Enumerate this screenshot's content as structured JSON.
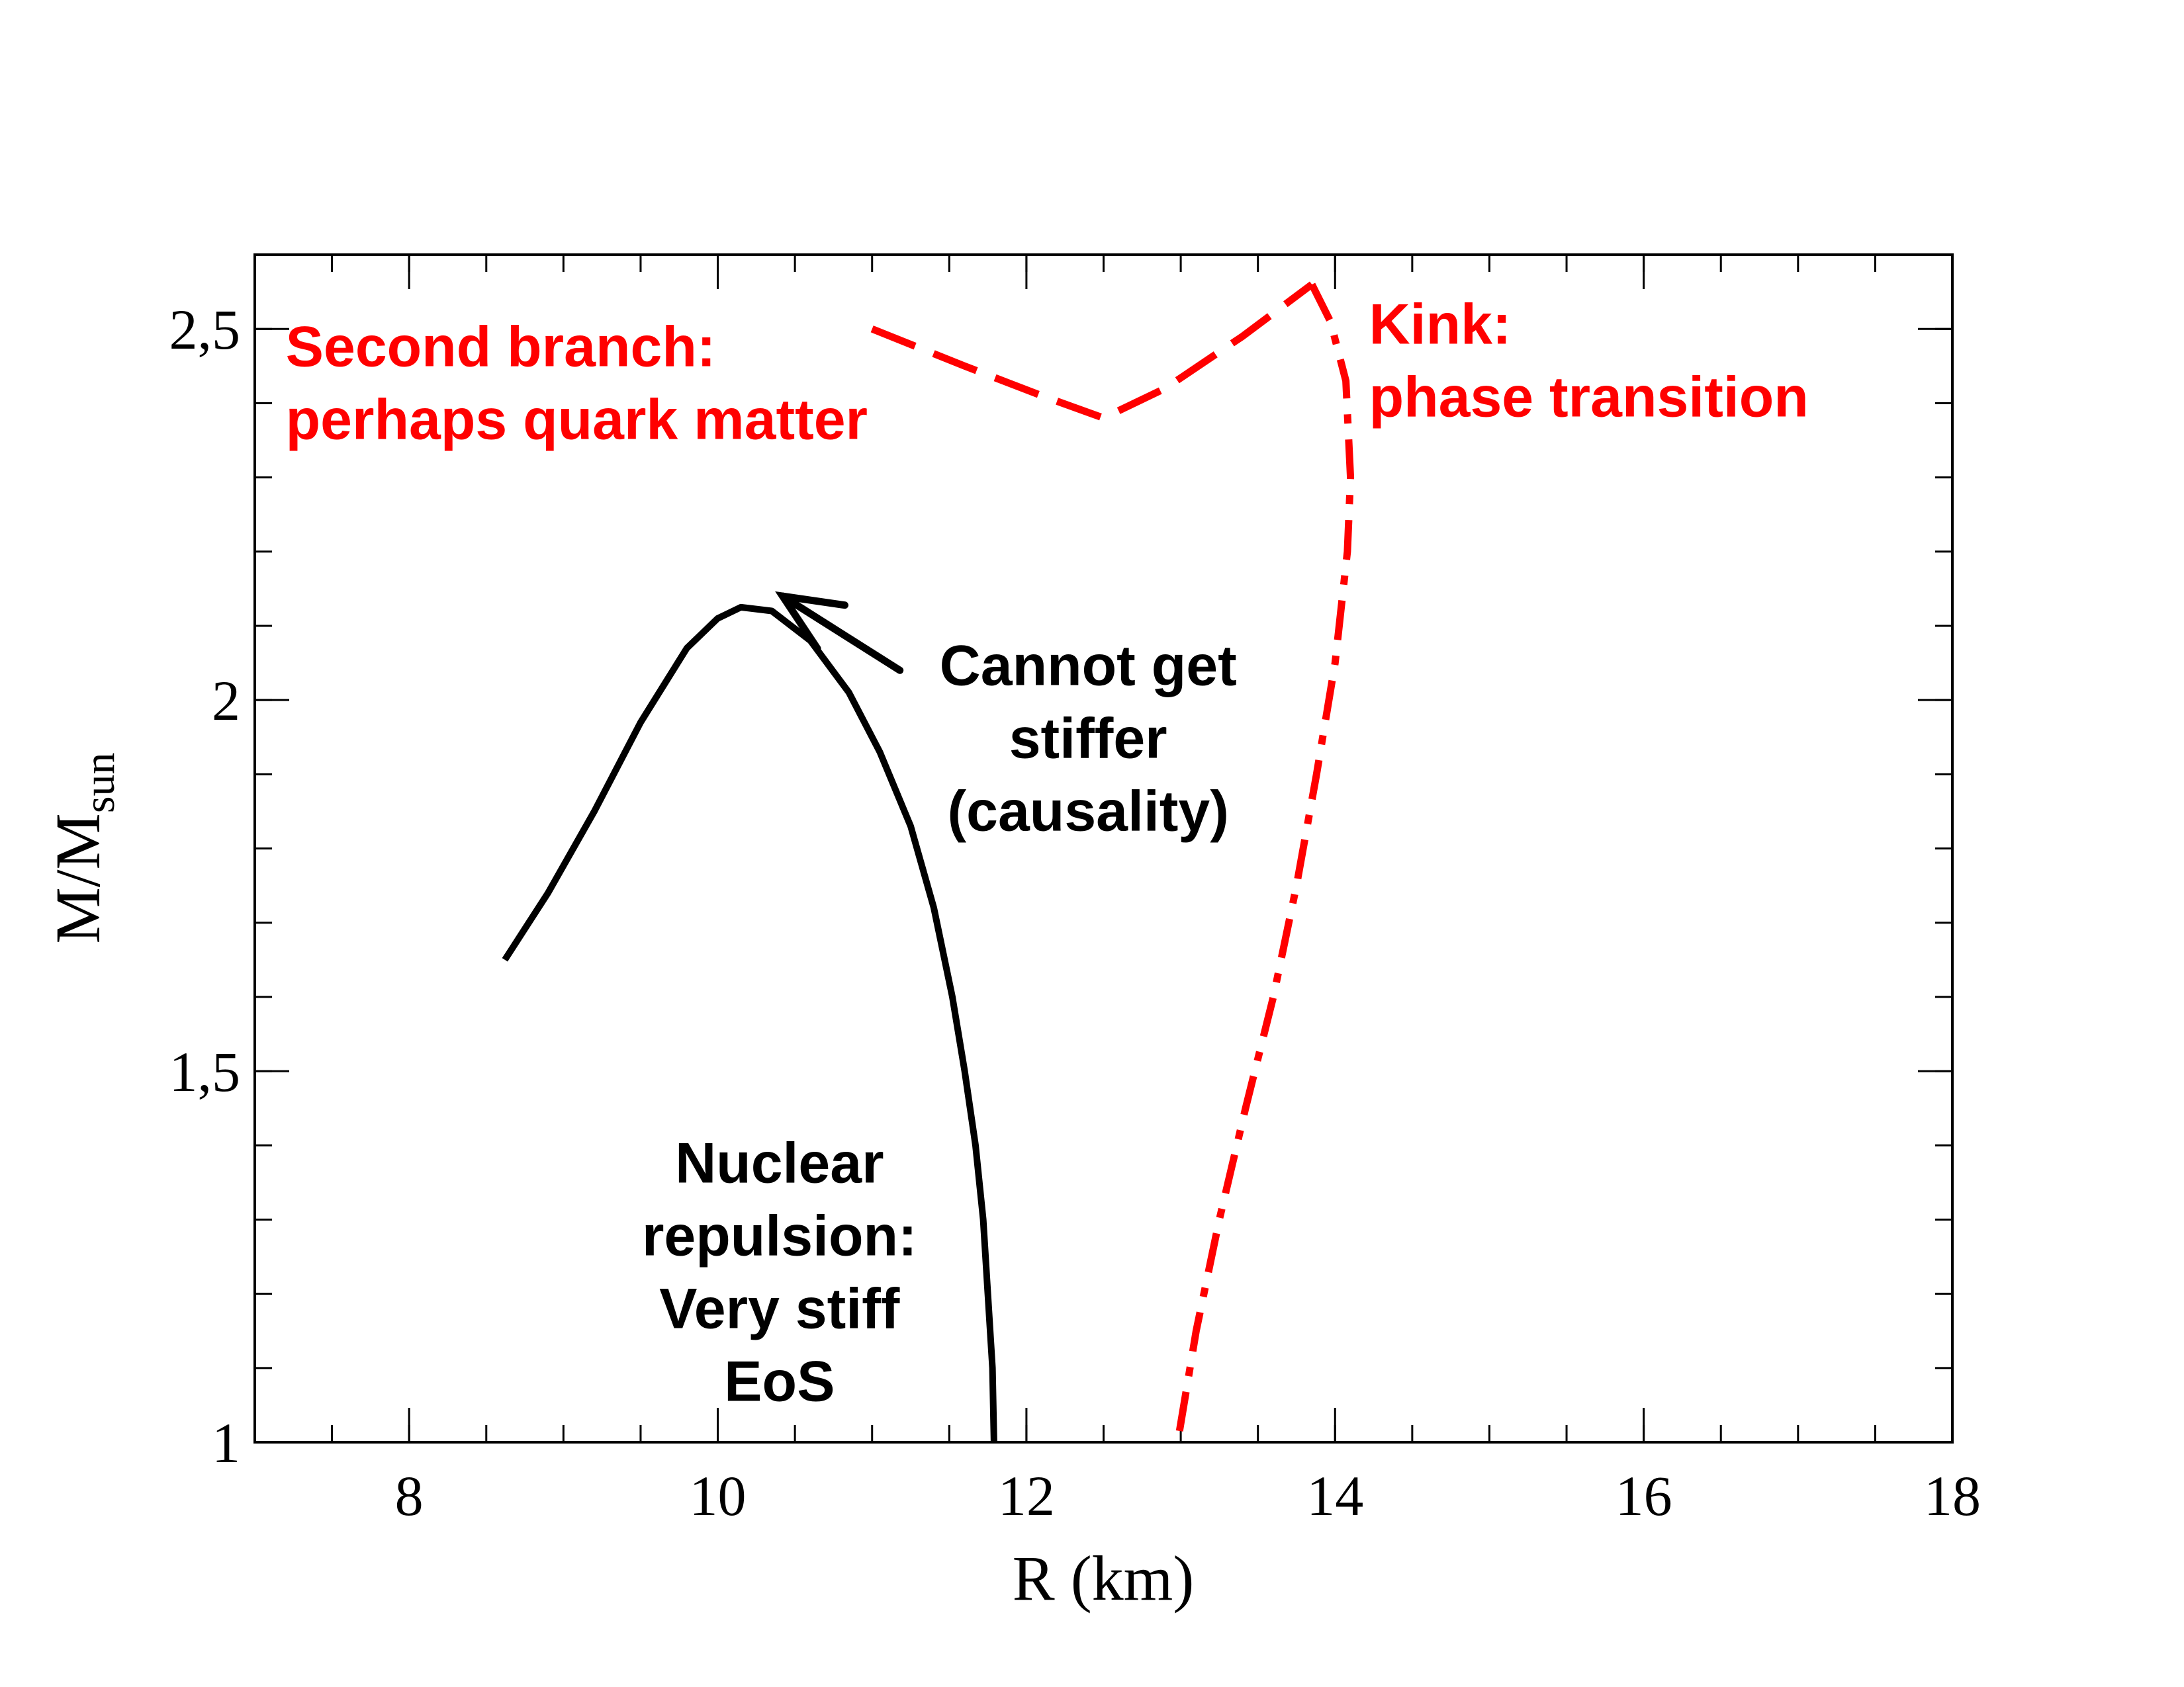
{
  "chart_data": {
    "type": "line",
    "xlabel": "R (km)",
    "ylabel": {
      "main": "M/M",
      "sub": "sun"
    },
    "xlim": [
      7,
      18
    ],
    "ylim": [
      1,
      2.6
    ],
    "x_ticks": [
      "8",
      "10",
      "12",
      "14",
      "16",
      "18"
    ],
    "y_ticks": [
      {
        "value": 1,
        "label": "1"
      },
      {
        "value": 1.5,
        "label": "1,5"
      },
      {
        "value": 2,
        "label": "2"
      },
      {
        "value": 2.5,
        "label": "2,5"
      }
    ],
    "x_minor_step": 0.5,
    "y_minor_step": 0.1,
    "grid": false,
    "series": [
      {
        "color": "#000000",
        "style": "solid",
        "points": [
          [
            8.62,
            1.65
          ],
          [
            8.9,
            1.74
          ],
          [
            9.2,
            1.85
          ],
          [
            9.5,
            1.97
          ],
          [
            9.8,
            2.07
          ],
          [
            10.0,
            2.11
          ],
          [
            10.15,
            2.125
          ],
          [
            10.35,
            2.12
          ],
          [
            10.6,
            2.08
          ],
          [
            10.85,
            2.01
          ],
          [
            11.05,
            1.93
          ],
          [
            11.25,
            1.83
          ],
          [
            11.4,
            1.72
          ],
          [
            11.52,
            1.6
          ],
          [
            11.6,
            1.5
          ],
          [
            11.67,
            1.4
          ],
          [
            11.72,
            1.3
          ],
          [
            11.75,
            1.2
          ],
          [
            11.78,
            1.1
          ],
          [
            11.79,
            1.0
          ]
        ]
      },
      {
        "color": "#ff0000",
        "style": "dashed",
        "points": [
          [
            11.0,
            2.5
          ],
          [
            11.6,
            2.45
          ],
          [
            12.1,
            2.41
          ],
          [
            12.5,
            2.38
          ],
          [
            12.9,
            2.42
          ],
          [
            13.4,
            2.49
          ],
          [
            13.85,
            2.56
          ]
        ]
      },
      {
        "color": "#ff0000",
        "style": "dashdot",
        "points": [
          [
            13.85,
            2.56
          ],
          [
            13.97,
            2.51
          ],
          [
            14.07,
            2.43
          ],
          [
            14.1,
            2.3
          ],
          [
            14.08,
            2.2
          ],
          [
            14.0,
            2.05
          ],
          [
            13.88,
            1.9
          ],
          [
            13.75,
            1.75
          ],
          [
            13.6,
            1.6
          ],
          [
            13.42,
            1.45
          ],
          [
            13.25,
            1.3
          ],
          [
            13.1,
            1.15
          ],
          [
            12.98,
            1.0
          ]
        ]
      }
    ],
    "annotations": [
      {
        "color": "#ff0000",
        "x": 7.2,
        "y": 2.45,
        "anchor": "start",
        "lines": [
          "Second branch:",
          "perhaps quark matter"
        ]
      },
      {
        "color": "#ff0000",
        "x": 14.22,
        "y": 2.48,
        "anchor": "start",
        "lines": [
          "Kink:",
          "phase transition"
        ]
      },
      {
        "color": "#000000",
        "x": 12.4,
        "y": 2.02,
        "anchor": "middle",
        "lines": [
          "Cannot get",
          "stiffer",
          "(causality)"
        ]
      },
      {
        "color": "#000000",
        "x": 10.4,
        "y": 1.35,
        "anchor": "middle",
        "lines": [
          "Nuclear",
          "repulsion:",
          "Very stiff",
          "EoS"
        ]
      }
    ],
    "arrow": {
      "from": [
        11.18,
        2.04
      ],
      "to": [
        10.42,
        2.14
      ],
      "color": "#000000"
    }
  }
}
